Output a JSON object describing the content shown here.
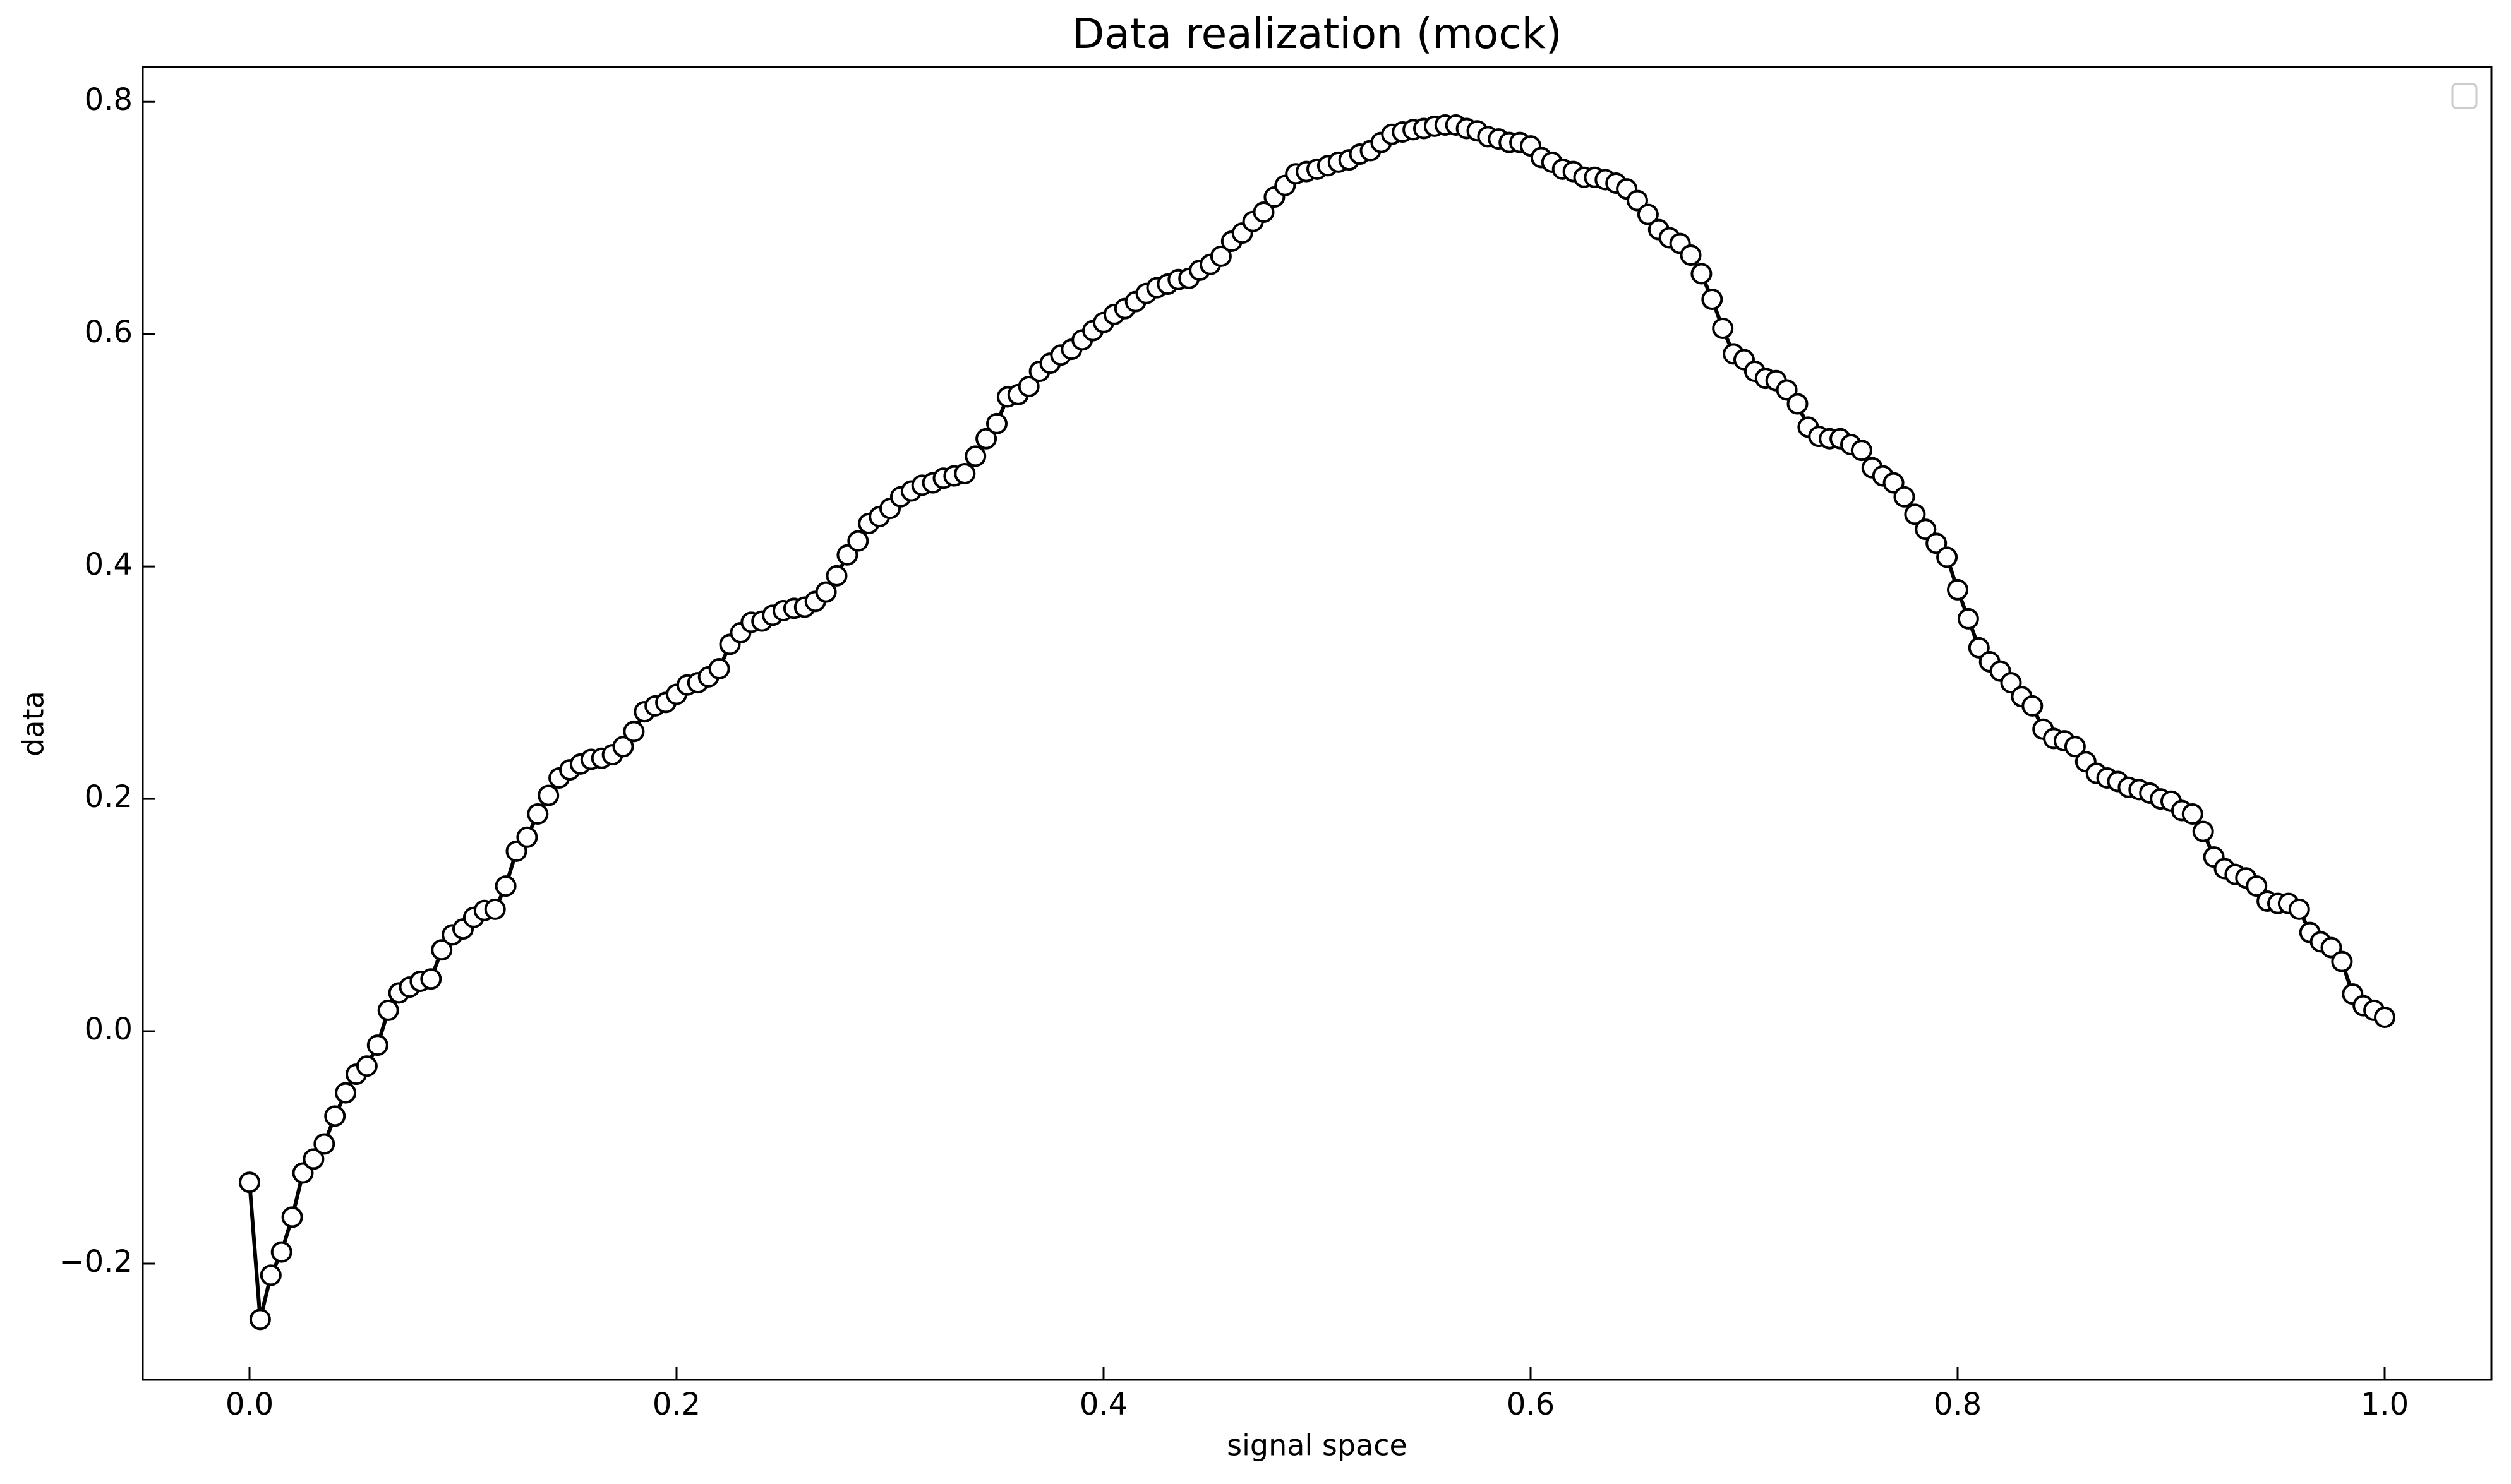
{
  "chart_data": {
    "type": "line",
    "title": "Data realization (mock)",
    "xlabel": "signal space",
    "ylabel": "data",
    "color": "#000000",
    "marker": "circle",
    "xlim": [
      -0.05,
      1.05
    ],
    "ylim": [
      -0.3,
      0.83
    ],
    "xticks": [
      {
        "value": 0,
        "label": "0.0"
      },
      0.2,
      0.4,
      0.6,
      0.8,
      {
        "value": 1,
        "label": "1.0"
      }
    ],
    "yticks": [
      {
        "value": -0.2,
        "label": "−0.2"
      },
      {
        "value": 0,
        "label": "0.0"
      },
      0.2,
      0.4,
      0.6,
      0.8
    ],
    "x": [
      0,
      0.005,
      0.01,
      0.015,
      0.02,
      0.025,
      0.03,
      0.035,
      0.04,
      0.045,
      0.05,
      0.055,
      0.06,
      0.065,
      0.07,
      0.075,
      0.08,
      0.085,
      0.09,
      0.095,
      0.1,
      0.105,
      0.11,
      0.115,
      0.12,
      0.125,
      0.13,
      0.135,
      0.14,
      0.145,
      0.15,
      0.155,
      0.16,
      0.165,
      0.17,
      0.175,
      0.18,
      0.185,
      0.19,
      0.195,
      0.2,
      0.205,
      0.21,
      0.215,
      0.22,
      0.225,
      0.23,
      0.235,
      0.24,
      0.245,
      0.25,
      0.255,
      0.26,
      0.265,
      0.27,
      0.275,
      0.28,
      0.285,
      0.29,
      0.295,
      0.3,
      0.305,
      0.31,
      0.315,
      0.32,
      0.325,
      0.33,
      0.335,
      0.34,
      0.345,
      0.35,
      0.355,
      0.36,
      0.365,
      0.37,
      0.375,
      0.38,
      0.385,
      0.39,
      0.395,
      0.4,
      0.405,
      0.41,
      0.415,
      0.42,
      0.425,
      0.43,
      0.435,
      0.44,
      0.445,
      0.45,
      0.455,
      0.46,
      0.465,
      0.47,
      0.475,
      0.48,
      0.485,
      0.49,
      0.495,
      0.5,
      0.505,
      0.51,
      0.515,
      0.52,
      0.525,
      0.53,
      0.535,
      0.54,
      0.545,
      0.55,
      0.555,
      0.56,
      0.565,
      0.57,
      0.575,
      0.58,
      0.585,
      0.59,
      0.595,
      0.6,
      0.605,
      0.61,
      0.615,
      0.62,
      0.625,
      0.63,
      0.635,
      0.64,
      0.645,
      0.65,
      0.655,
      0.66,
      0.665,
      0.67,
      0.675,
      0.68,
      0.685,
      0.69,
      0.695,
      0.7,
      0.705,
      0.71,
      0.715,
      0.72,
      0.725,
      0.73,
      0.735,
      0.74,
      0.745,
      0.75,
      0.755,
      0.76,
      0.765,
      0.77,
      0.775,
      0.78,
      0.785,
      0.79,
      0.795,
      0.8,
      0.805,
      0.81,
      0.815,
      0.82,
      0.825,
      0.83,
      0.835,
      0.84,
      0.845,
      0.85,
      0.855,
      0.86,
      0.865,
      0.87,
      0.875,
      0.88,
      0.885,
      0.89,
      0.895,
      0.9,
      0.905,
      0.91,
      0.915,
      0.92,
      0.925,
      0.93,
      0.935,
      0.94,
      0.945,
      0.95,
      0.955,
      0.96,
      0.965,
      0.97,
      0.975,
      0.98,
      0.985,
      0.99,
      0.995,
      1
    ],
    "values": [
      -0.13,
      -0.248,
      -0.21,
      -0.19,
      -0.16,
      -0.122,
      -0.11,
      -0.097,
      -0.073,
      -0.053,
      -0.037,
      -0.03,
      -0.012,
      0.018,
      0.033,
      0.038,
      0.043,
      0.045,
      0.07,
      0.083,
      0.088,
      0.098,
      0.104,
      0.105,
      0.125,
      0.155,
      0.167,
      0.187,
      0.203,
      0.218,
      0.225,
      0.23,
      0.234,
      0.235,
      0.238,
      0.245,
      0.258,
      0.275,
      0.28,
      0.283,
      0.29,
      0.298,
      0.3,
      0.305,
      0.312,
      0.333,
      0.343,
      0.352,
      0.353,
      0.358,
      0.362,
      0.364,
      0.365,
      0.37,
      0.378,
      0.392,
      0.41,
      0.422,
      0.437,
      0.443,
      0.45,
      0.46,
      0.465,
      0.47,
      0.472,
      0.476,
      0.478,
      0.48,
      0.495,
      0.51,
      0.523,
      0.546,
      0.548,
      0.555,
      0.568,
      0.575,
      0.582,
      0.587,
      0.595,
      0.603,
      0.61,
      0.617,
      0.622,
      0.628,
      0.635,
      0.64,
      0.643,
      0.647,
      0.648,
      0.655,
      0.66,
      0.667,
      0.68,
      0.687,
      0.697,
      0.705,
      0.718,
      0.728,
      0.738,
      0.74,
      0.742,
      0.745,
      0.748,
      0.75,
      0.755,
      0.758,
      0.765,
      0.772,
      0.774,
      0.776,
      0.777,
      0.779,
      0.78,
      0.78,
      0.777,
      0.775,
      0.77,
      0.768,
      0.765,
      0.765,
      0.762,
      0.752,
      0.748,
      0.742,
      0.74,
      0.735,
      0.735,
      0.733,
      0.73,
      0.725,
      0.715,
      0.703,
      0.69,
      0.683,
      0.678,
      0.668,
      0.652,
      0.63,
      0.605,
      0.583,
      0.578,
      0.568,
      0.562,
      0.56,
      0.552,
      0.54,
      0.52,
      0.512,
      0.51,
      0.51,
      0.505,
      0.5,
      0.485,
      0.478,
      0.472,
      0.46,
      0.445,
      0.432,
      0.42,
      0.408,
      0.38,
      0.355,
      0.33,
      0.318,
      0.31,
      0.3,
      0.288,
      0.28,
      0.26,
      0.252,
      0.25,
      0.245,
      0.232,
      0.222,
      0.218,
      0.215,
      0.21,
      0.208,
      0.205,
      0.2,
      0.198,
      0.19,
      0.187,
      0.172,
      0.15,
      0.14,
      0.135,
      0.132,
      0.125,
      0.112,
      0.11,
      0.11,
      0.105,
      0.085,
      0.077,
      0.072,
      0.06,
      0.032,
      0.022,
      0.018,
      0.012
    ]
  }
}
